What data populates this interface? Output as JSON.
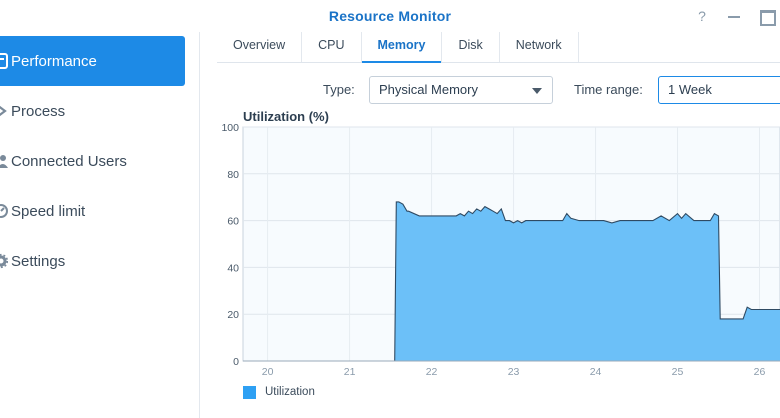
{
  "window": {
    "title": "Resource Monitor",
    "help_glyph": "?"
  },
  "sidebar": {
    "items": [
      {
        "label": "Performance",
        "icon": "performance-icon",
        "active": true
      },
      {
        "label": "Process",
        "icon": "process-icon",
        "active": false
      },
      {
        "label": "Connected Users",
        "icon": "users-icon",
        "active": false
      },
      {
        "label": "Speed limit",
        "icon": "speed-limit-icon",
        "active": false
      },
      {
        "label": "Settings",
        "icon": "settings-icon",
        "active": false
      }
    ]
  },
  "tabs": [
    {
      "label": "Overview",
      "active": false
    },
    {
      "label": "CPU",
      "active": false
    },
    {
      "label": "Memory",
      "active": true
    },
    {
      "label": "Disk",
      "active": false
    },
    {
      "label": "Network",
      "active": false
    }
  ],
  "controls": {
    "type_label": "Type:",
    "type_value": "Physical Memory",
    "time_range_label": "Time range:",
    "time_range_value": "1 Week"
  },
  "colors": {
    "accent": "#1d8ae6",
    "area_fill": "#6cc0f8",
    "area_line": "#2f4a63"
  },
  "chart_data": {
    "type": "area",
    "title": "Utilization (%)",
    "xlabel": "",
    "ylabel": "",
    "ylim": [
      0,
      100
    ],
    "y_ticks": [
      0,
      20,
      40,
      60,
      80,
      100
    ],
    "x_ticks": [
      "20",
      "21",
      "22",
      "23",
      "24",
      "25",
      "26"
    ],
    "xlim": [
      19.7,
      26.25
    ],
    "grid": true,
    "legend": "bottom-left",
    "series": [
      {
        "name": "Utilization",
        "color": "#6cc0f8",
        "x": [
          19.7,
          21.55,
          21.57,
          21.6,
          21.65,
          21.7,
          21.72,
          21.85,
          21.9,
          22.0,
          22.1,
          22.2,
          22.3,
          22.35,
          22.4,
          22.45,
          22.5,
          22.55,
          22.6,
          22.65,
          22.7,
          22.75,
          22.8,
          22.85,
          22.9,
          22.95,
          23.0,
          23.05,
          23.1,
          23.15,
          23.2,
          23.3,
          23.4,
          23.5,
          23.6,
          23.65,
          23.7,
          23.8,
          23.9,
          24.0,
          24.1,
          24.2,
          24.3,
          24.4,
          24.5,
          24.6,
          24.7,
          24.8,
          24.9,
          25.0,
          25.05,
          25.1,
          25.2,
          25.3,
          25.35,
          25.4,
          25.45,
          25.5,
          25.52,
          25.55,
          25.8,
          25.85,
          25.9,
          26.0,
          26.1,
          26.25
        ],
        "y": [
          0,
          0,
          68,
          68,
          67,
          64,
          64,
          62,
          62,
          62,
          62,
          62,
          62,
          63,
          62,
          64,
          63,
          65,
          64,
          66,
          65,
          64,
          63,
          65,
          60,
          60,
          59,
          60,
          59,
          60,
          60,
          60,
          60,
          60,
          60,
          63,
          61,
          60,
          60,
          60,
          60,
          59,
          60,
          60,
          60,
          60,
          60,
          62,
          60,
          63,
          61,
          63,
          60,
          60,
          60,
          60,
          63,
          62,
          18,
          18,
          18,
          23,
          22,
          22,
          22,
          22
        ]
      }
    ]
  }
}
